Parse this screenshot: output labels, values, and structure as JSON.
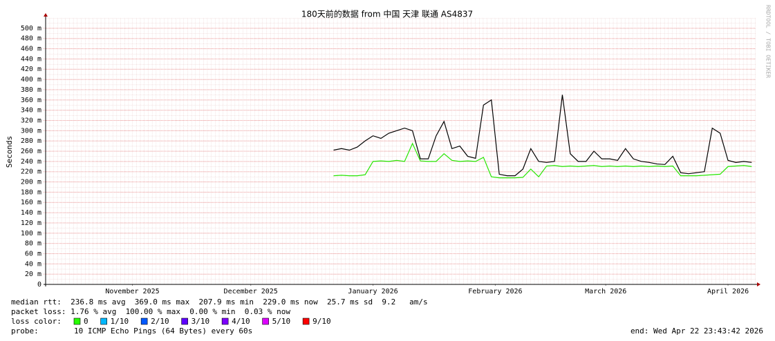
{
  "chart_data": {
    "type": "line",
    "title": "180天前的数据 from 中国 天津 联通 AS4837",
    "y_label": "Seconds",
    "side_note": "RRDTOOL / TOBI OETIKER",
    "x": [
      73,
      75,
      77,
      79,
      81,
      83,
      85,
      87,
      89,
      91,
      93,
      95,
      97,
      99,
      101,
      103,
      105,
      107,
      109,
      111,
      113,
      115,
      117,
      119,
      121,
      123,
      125,
      127,
      129,
      131,
      133,
      135,
      137,
      139,
      141,
      143,
      145,
      147,
      149,
      151,
      153,
      155,
      157,
      159,
      161,
      163,
      165,
      167,
      169,
      171,
      173,
      175,
      177,
      179
    ],
    "series": [
      {
        "color": "#000000",
        "values": [
          262,
          265,
          262,
          268,
          280,
          290,
          285,
          295,
          300,
          305,
          300,
          245,
          245,
          290,
          318,
          265,
          270,
          250,
          246,
          350,
          360,
          215,
          212,
          212,
          225,
          265,
          240,
          238,
          240,
          370,
          255,
          240,
          240,
          260,
          245,
          245,
          242,
          265,
          245,
          240,
          238,
          235,
          234,
          250,
          218,
          216,
          218,
          220,
          305,
          295,
          242,
          238,
          240,
          238
        ]
      },
      {
        "color": "#26e600",
        "values": [
          212,
          213,
          212,
          212,
          214,
          240,
          241,
          240,
          242,
          240,
          275,
          241,
          240,
          240,
          255,
          242,
          240,
          241,
          240,
          248,
          210,
          208,
          208,
          208,
          209,
          225,
          210,
          231,
          232,
          230,
          231,
          230,
          231,
          232,
          230,
          231,
          230,
          231,
          230,
          231,
          230,
          231,
          230,
          231,
          212,
          212,
          212,
          213,
          214,
          215,
          230,
          231,
          232,
          230
        ]
      }
    ],
    "xlim": [
      0,
      180
    ],
    "xticks": [
      {
        "value": 22,
        "label": "November 2025"
      },
      {
        "value": 52,
        "label": "December 2025"
      },
      {
        "value": 83,
        "label": "January 2026"
      },
      {
        "value": 114,
        "label": "February 2026"
      },
      {
        "value": 142,
        "label": "March 2026"
      },
      {
        "value": 173,
        "label": "April 2026"
      }
    ],
    "ylim": [
      0,
      520
    ],
    "yticks": [
      0,
      {
        "value": 20,
        "label": "20 m"
      },
      {
        "value": 40,
        "label": "40 m"
      },
      {
        "value": 60,
        "label": "60 m"
      },
      {
        "value": 80,
        "label": "80 m"
      },
      {
        "value": 100,
        "label": "100 m"
      },
      {
        "value": 120,
        "label": "120 m"
      },
      {
        "value": 140,
        "label": "140 m"
      },
      {
        "value": 160,
        "label": "160 m"
      },
      {
        "value": 180,
        "label": "180 m"
      },
      {
        "value": 200,
        "label": "200 m"
      },
      {
        "value": 220,
        "label": "220 m"
      },
      {
        "value": 240,
        "label": "240 m"
      },
      {
        "value": 260,
        "label": "260 m"
      },
      {
        "value": 280,
        "label": "280 m"
      },
      {
        "value": 300,
        "label": "300 m"
      },
      {
        "value": 320,
        "label": "320 m"
      },
      {
        "value": 340,
        "label": "340 m"
      },
      {
        "value": 360,
        "label": "360 m"
      },
      {
        "value": 380,
        "label": "380 m"
      },
      {
        "value": 400,
        "label": "400 m"
      },
      {
        "value": 420,
        "label": "420 m"
      },
      {
        "value": 440,
        "label": "440 m"
      },
      {
        "value": 460,
        "label": "460 m"
      },
      {
        "value": 480,
        "label": "480 m"
      },
      {
        "value": 500,
        "label": "500 m"
      }
    ],
    "grid": true,
    "stats": [
      "median rtt:  236.8 ms avg  369.0 ms max  207.9 ms min  229.0 ms now  25.7 ms sd  9.2   am/s",
      "packet loss: 1.76 % avg  100.00 % max  0.00 % min  0.03 % now"
    ],
    "loss_label": "loss color:",
    "loss_colors": [
      {
        "label": "0",
        "color": "#26ff00"
      },
      {
        "label": "1/10",
        "color": "#00b8ff"
      },
      {
        "label": "2/10",
        "color": "#0059ff"
      },
      {
        "label": "3/10",
        "color": "#5e00ff"
      },
      {
        "label": "4/10",
        "color": "#7e00ff"
      },
      {
        "label": "5/10",
        "color": "#dd00ff"
      },
      {
        "label": "9/10",
        "color": "#ff0000"
      }
    ],
    "probe_label": "probe:",
    "probe": "10 ICMP Echo Pings (64 Bytes) every 60s",
    "end": "end: Wed Apr 22 23:43:42 2026"
  }
}
